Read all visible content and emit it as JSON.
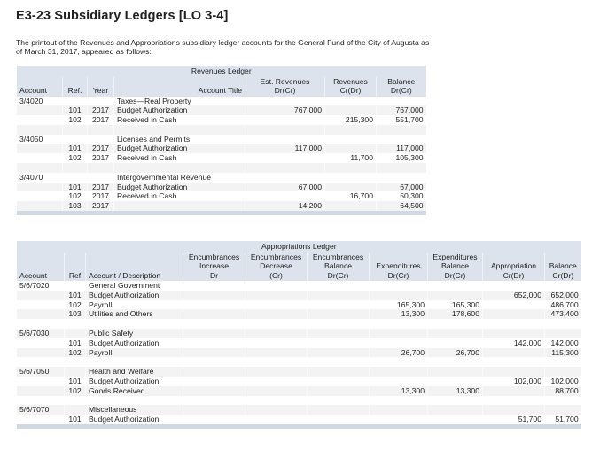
{
  "page": {
    "title": "E3-23 Subsidiary Ledgers [LO 3-4]",
    "intro": "The printout of the Revenues and Appropriations subsidiary ledger accounts for the General Fund of the City of Augusta as of March 31, 2017, appeared as follows:"
  },
  "revenues_ledger": {
    "caption": "Revenues Ledger",
    "headers": {
      "account": "Account",
      "ref": "Ref.",
      "year": "Year",
      "title": "Account Title",
      "est_revenues_1": "Est. Revenues",
      "est_revenues_2": "Dr(Cr)",
      "revenues_1": "Revenues",
      "revenues_2": "Cr(Dr)",
      "balance_1": "Balance",
      "balance_2": "Dr(Cr)"
    },
    "rows": [
      {
        "account": "3/4020",
        "ref": "",
        "year": "",
        "title": "Taxes—Real Property",
        "est": "",
        "rev": "",
        "bal": ""
      },
      {
        "account": "",
        "ref": "101",
        "year": "2017",
        "title": "Budget Authorization",
        "est": "767,000",
        "rev": "",
        "bal": "767,000"
      },
      {
        "account": "",
        "ref": "102",
        "year": "2017",
        "title": "Received in Cash",
        "est": "",
        "rev": "215,300",
        "bal": "551,700"
      },
      {
        "account": "",
        "ref": "",
        "year": "",
        "title": "",
        "est": "",
        "rev": "",
        "bal": ""
      },
      {
        "account": "3/4050",
        "ref": "",
        "year": "",
        "title": "Licenses and Permits",
        "est": "",
        "rev": "",
        "bal": ""
      },
      {
        "account": "",
        "ref": "101",
        "year": "2017",
        "title": "Budget Authorization",
        "est": "117,000",
        "rev": "",
        "bal": "117,000"
      },
      {
        "account": "",
        "ref": "102",
        "year": "2017",
        "title": "Received in Cash",
        "est": "",
        "rev": "11,700",
        "bal": "105,300"
      },
      {
        "account": "",
        "ref": "",
        "year": "",
        "title": "",
        "est": "",
        "rev": "",
        "bal": ""
      },
      {
        "account": "3/4070",
        "ref": "",
        "year": "",
        "title": "Intergovernmental Revenue",
        "est": "",
        "rev": "",
        "bal": ""
      },
      {
        "account": "",
        "ref": "101",
        "year": "2017",
        "title": "Budget Authorization",
        "est": "67,000",
        "rev": "",
        "bal": "67,000"
      },
      {
        "account": "",
        "ref": "102",
        "year": "2017",
        "title": "Received in Cash",
        "est": "",
        "rev": "16,700",
        "bal": "50,300"
      },
      {
        "account": "",
        "ref": "103",
        "year": "2017",
        "title": "",
        "est": "14,200",
        "rev": "",
        "bal": "64,500"
      }
    ]
  },
  "appropriations_ledger": {
    "caption": "Appropriations Ledger",
    "headers": {
      "account": "Account",
      "ref": "Ref",
      "description": "Account / Description",
      "enc_inc_1": "Encumbrances",
      "enc_inc_2": "Increase",
      "enc_inc_3": "Dr",
      "enc_dec_1": "Encumbrances",
      "enc_dec_2": "Decrease",
      "enc_dec_3": "(Cr)",
      "enc_bal_1": "Encumbrances",
      "enc_bal_2": "Balance",
      "enc_bal_3": "Dr(Cr)",
      "exp_1": "Expenditures",
      "exp_2": "Dr(Cr)",
      "exp_bal_1": "Expenditures",
      "exp_bal_2": "Balance",
      "exp_bal_3": "Dr(Cr)",
      "appr_1": "Appropriation",
      "appr_2": "Cr(Dr)",
      "bal_1": "Balance",
      "bal_2": "Cr(Dr)"
    },
    "rows": [
      {
        "account": "5/6/7020",
        "ref": "",
        "desc": "General Government",
        "enc_inc": "",
        "enc_dec": "",
        "enc_bal": "",
        "exp": "",
        "exp_bal": "",
        "appr": "",
        "bal": ""
      },
      {
        "account": "",
        "ref": "101",
        "desc": "Budget Authorization",
        "enc_inc": "",
        "enc_dec": "",
        "enc_bal": "",
        "exp": "",
        "exp_bal": "",
        "appr": "652,000",
        "bal": "652,000"
      },
      {
        "account": "",
        "ref": "102",
        "desc": "Payroll",
        "enc_inc": "",
        "enc_dec": "",
        "enc_bal": "",
        "exp": "165,300",
        "exp_bal": "165,300",
        "appr": "",
        "bal": "486,700"
      },
      {
        "account": "",
        "ref": "103",
        "desc": "Utilities and Others",
        "enc_inc": "",
        "enc_dec": "",
        "enc_bal": "",
        "exp": "13,300",
        "exp_bal": "178,600",
        "appr": "",
        "bal": "473,400"
      },
      {
        "account": "",
        "ref": "",
        "desc": "",
        "enc_inc": "",
        "enc_dec": "",
        "enc_bal": "",
        "exp": "",
        "exp_bal": "",
        "appr": "",
        "bal": ""
      },
      {
        "account": "5/6/7030",
        "ref": "",
        "desc": "Public Safety",
        "enc_inc": "",
        "enc_dec": "",
        "enc_bal": "",
        "exp": "",
        "exp_bal": "",
        "appr": "",
        "bal": ""
      },
      {
        "account": "",
        "ref": "101",
        "desc": "Budget Authorization",
        "enc_inc": "",
        "enc_dec": "",
        "enc_bal": "",
        "exp": "",
        "exp_bal": "",
        "appr": "142,000",
        "bal": "142,000"
      },
      {
        "account": "",
        "ref": "102",
        "desc": "Payroll",
        "enc_inc": "",
        "enc_dec": "",
        "enc_bal": "",
        "exp": "26,700",
        "exp_bal": "26,700",
        "appr": "",
        "bal": "115,300"
      },
      {
        "account": "",
        "ref": "",
        "desc": "",
        "enc_inc": "",
        "enc_dec": "",
        "enc_bal": "",
        "exp": "",
        "exp_bal": "",
        "appr": "",
        "bal": ""
      },
      {
        "account": "5/6/7050",
        "ref": "",
        "desc": "Health and Welfare",
        "enc_inc": "",
        "enc_dec": "",
        "enc_bal": "",
        "exp": "",
        "exp_bal": "",
        "appr": "",
        "bal": ""
      },
      {
        "account": "",
        "ref": "101",
        "desc": "Budget Authorization",
        "enc_inc": "",
        "enc_dec": "",
        "enc_bal": "",
        "exp": "",
        "exp_bal": "",
        "appr": "102,000",
        "bal": "102,000"
      },
      {
        "account": "",
        "ref": "102",
        "desc": "Goods Received",
        "enc_inc": "",
        "enc_dec": "",
        "enc_bal": "",
        "exp": "13,300",
        "exp_bal": "13,300",
        "appr": "",
        "bal": "88,700"
      },
      {
        "account": "",
        "ref": "",
        "desc": "",
        "enc_inc": "",
        "enc_dec": "",
        "enc_bal": "",
        "exp": "",
        "exp_bal": "",
        "appr": "",
        "bal": ""
      },
      {
        "account": "5/6/7070",
        "ref": "",
        "desc": "Miscellaneous",
        "enc_inc": "",
        "enc_dec": "",
        "enc_bal": "",
        "exp": "",
        "exp_bal": "",
        "appr": "",
        "bal": ""
      },
      {
        "account": "",
        "ref": "101",
        "desc": "Budget Authorization",
        "enc_inc": "",
        "enc_dec": "",
        "enc_bal": "",
        "exp": "",
        "exp_bal": "",
        "appr": "51,700",
        "bal": "51,700"
      }
    ]
  }
}
